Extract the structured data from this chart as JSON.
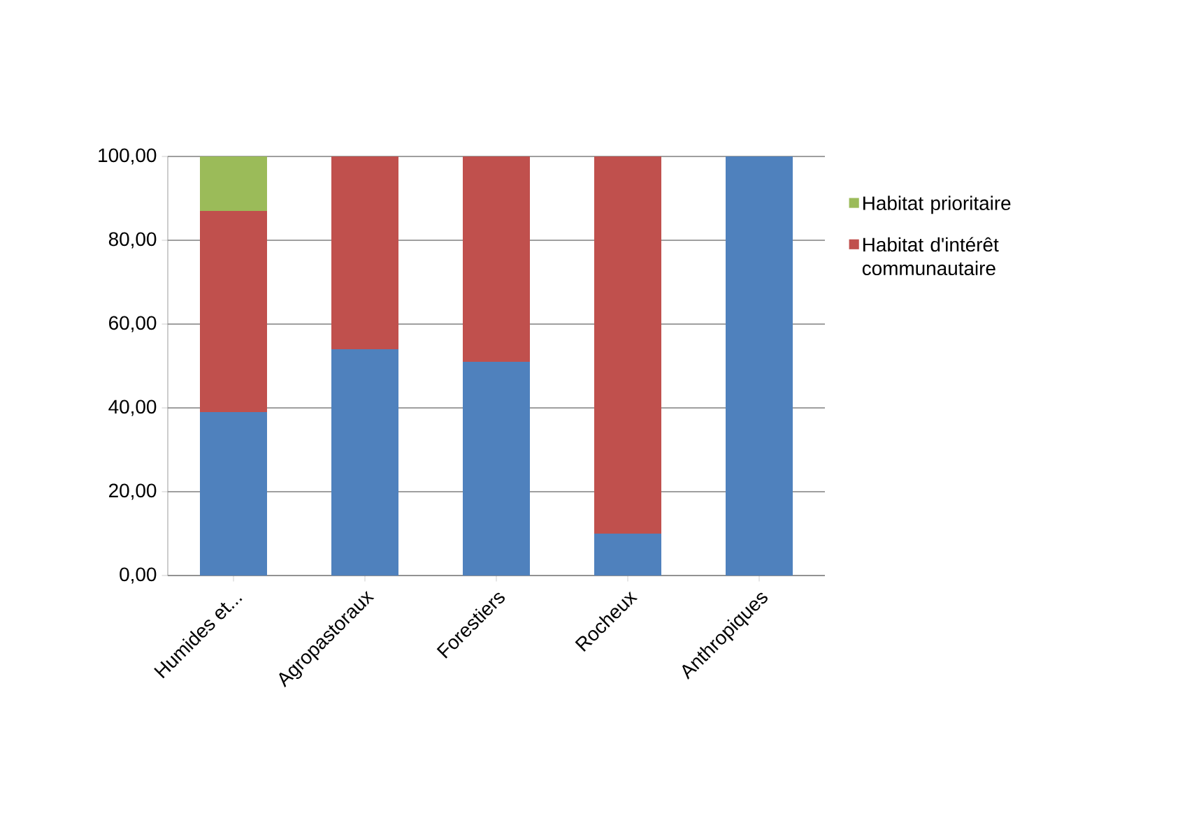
{
  "chart_data": {
    "type": "bar",
    "stacked": true,
    "categories": [
      "Humides et...",
      "Agropastoraux",
      "Forestiers",
      "Rocheux",
      "Anthropiques"
    ],
    "series": [
      {
        "color": "#4f81bd",
        "values": [
          39,
          54,
          51,
          10,
          100
        ]
      },
      {
        "name": "Habitat d'intérêt communautaire",
        "color": "#c0504d",
        "values": [
          48,
          46,
          49,
          90,
          0
        ]
      },
      {
        "name": "Habitat prioritaire",
        "color": "#9bbb59",
        "values": [
          13,
          0,
          0,
          0,
          0
        ]
      }
    ],
    "ylim": [
      0,
      100
    ],
    "yticks": [
      {
        "value": 0,
        "label": "0,00"
      },
      {
        "value": 20,
        "label": "20,00"
      },
      {
        "value": 40,
        "label": "40,00"
      },
      {
        "value": 60,
        "label": "60,00"
      },
      {
        "value": 80,
        "label": "80,00"
      },
      {
        "value": 100,
        "label": "100,00"
      }
    ],
    "grid": "y",
    "legend": "right"
  }
}
